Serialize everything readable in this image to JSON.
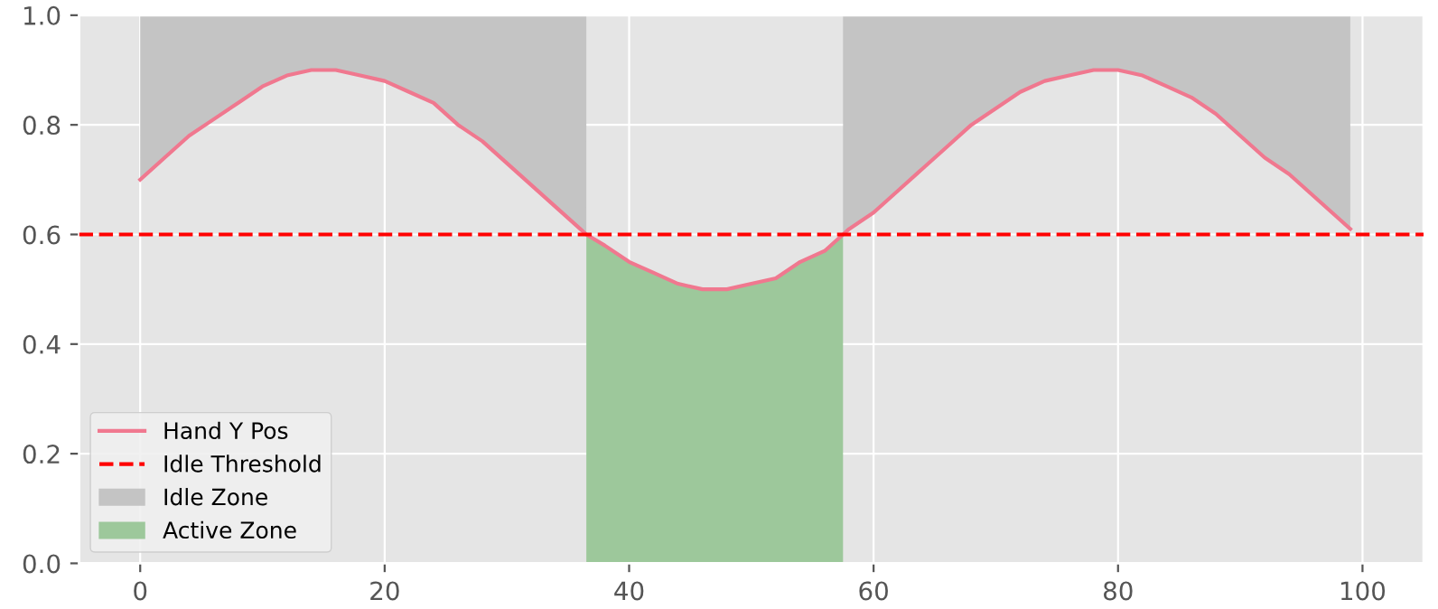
{
  "chart_data": {
    "type": "line",
    "x": [
      0,
      2,
      4,
      6,
      8,
      10,
      12,
      14,
      16,
      18,
      20,
      22,
      24,
      26,
      28,
      30,
      32,
      34,
      36,
      36.5,
      38,
      40,
      42,
      44,
      46,
      48,
      50,
      52,
      54,
      56,
      57.5,
      58,
      60,
      62,
      64,
      66,
      68,
      70,
      72,
      74,
      76,
      78,
      80,
      82,
      84,
      86,
      88,
      90,
      92,
      94,
      96,
      98,
      99
    ],
    "series": [
      {
        "name": "Hand Y Pos",
        "color": "#f0788f",
        "values": [
          0.7,
          0.74,
          0.78,
          0.81,
          0.84,
          0.87,
          0.89,
          0.9,
          0.9,
          0.89,
          0.88,
          0.86,
          0.84,
          0.8,
          0.77,
          0.73,
          0.69,
          0.65,
          0.61,
          0.6,
          0.58,
          0.55,
          0.53,
          0.51,
          0.5,
          0.5,
          0.51,
          0.52,
          0.55,
          0.57,
          0.6,
          0.61,
          0.64,
          0.68,
          0.72,
          0.76,
          0.8,
          0.83,
          0.86,
          0.88,
          0.89,
          0.9,
          0.9,
          0.89,
          0.87,
          0.85,
          0.82,
          0.78,
          0.74,
          0.71,
          0.67,
          0.63,
          0.61
        ]
      },
      {
        "name": "Idle Zone",
        "type": "area",
        "color": "#c4c4c4",
        "values": [
          1,
          1,
          1,
          1,
          1,
          1,
          1,
          1,
          1,
          1,
          1,
          1,
          1,
          1,
          1,
          1,
          1,
          1,
          1,
          1,
          null,
          null,
          null,
          null,
          null,
          null,
          null,
          null,
          null,
          null,
          1,
          1,
          1,
          1,
          1,
          1,
          1,
          1,
          1,
          1,
          1,
          1,
          1,
          1,
          1,
          1,
          1,
          1,
          1,
          1,
          1,
          1,
          1
        ]
      },
      {
        "name": "Active Zone",
        "type": "area",
        "color": "#9dc89b",
        "values": [
          null,
          null,
          null,
          null,
          null,
          null,
          null,
          null,
          null,
          null,
          null,
          null,
          null,
          null,
          null,
          null,
          null,
          null,
          null,
          0.6,
          0.58,
          0.55,
          0.53,
          0.51,
          0.5,
          0.5,
          0.51,
          0.52,
          0.55,
          0.57,
          0.6,
          null,
          null,
          null,
          null,
          null,
          null,
          null,
          null,
          null,
          null,
          null,
          null,
          null,
          null,
          null,
          null,
          null,
          null,
          null,
          null,
          null,
          null
        ]
      }
    ],
    "ref_lines": [
      {
        "axis": "y",
        "value": 0.6,
        "label": "Idle Threshold",
        "color": "#ff0000",
        "line_style": "dashed"
      }
    ],
    "xlim": [
      -5,
      105
    ],
    "ylim": [
      0,
      1
    ],
    "xticks": [
      0,
      20,
      40,
      60,
      80,
      100
    ],
    "yticks": [
      {
        "value": 0,
        "label": "0.0"
      },
      {
        "value": 0.2,
        "label": "0.2"
      },
      {
        "value": 0.4,
        "label": "0.4"
      },
      {
        "value": 0.6,
        "label": "0.6"
      },
      {
        "value": 0.8,
        "label": "0.8"
      },
      {
        "value": 1,
        "label": "1.0"
      }
    ],
    "grid": true,
    "legend": "bottom left"
  }
}
